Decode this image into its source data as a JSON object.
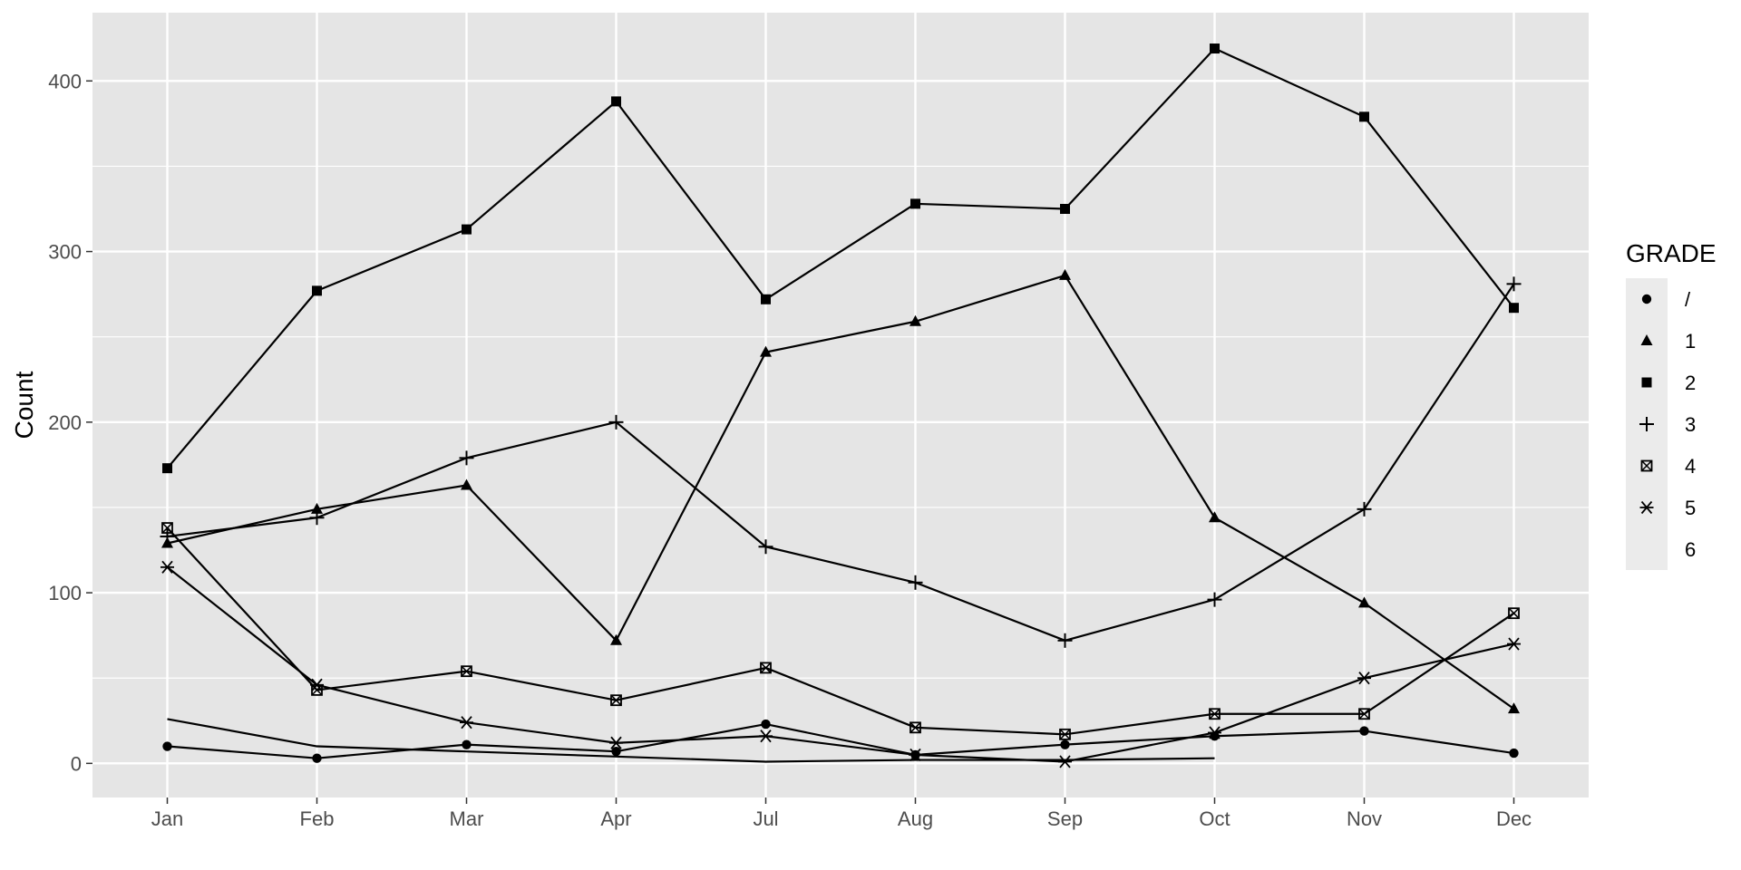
{
  "chart_data": {
    "type": "line",
    "xlabel": "",
    "ylabel": "Count",
    "categories": [
      "Jan",
      "Feb",
      "Mar",
      "Apr",
      "Jul",
      "Aug",
      "Sep",
      "Oct",
      "Nov",
      "Dec"
    ],
    "yticks": [
      0,
      100,
      200,
      300,
      400
    ],
    "ylim": [
      -20,
      440
    ],
    "grid": true,
    "legend": {
      "title": "GRADE",
      "position": "right"
    },
    "series": [
      {
        "name": "/",
        "shape": "circle",
        "values": [
          10,
          3,
          11,
          7,
          23,
          5,
          11,
          16,
          19,
          6
        ]
      },
      {
        "name": "1",
        "shape": "triangle",
        "values": [
          129,
          149,
          163,
          72,
          241,
          259,
          286,
          144,
          94,
          32
        ]
      },
      {
        "name": "2",
        "shape": "square",
        "values": [
          173,
          277,
          313,
          388,
          272,
          328,
          325,
          419,
          379,
          267
        ]
      },
      {
        "name": "3",
        "shape": "plus",
        "values": [
          133,
          144,
          179,
          200,
          127,
          106,
          72,
          96,
          149,
          281
        ]
      },
      {
        "name": "4",
        "shape": "square-cross",
        "values": [
          138,
          43,
          54,
          37,
          56,
          21,
          17,
          29,
          29,
          88
        ]
      },
      {
        "name": "5",
        "shape": "asterisk",
        "values": [
          115,
          46,
          24,
          12,
          16,
          5,
          1,
          18,
          50,
          70
        ]
      },
      {
        "name": "6",
        "shape": "none",
        "values": [
          26,
          10,
          7,
          4,
          1,
          2,
          2,
          3,
          null,
          null
        ]
      }
    ],
    "colors": {
      "background": "#ffffff",
      "panel": "#e5e5e5",
      "grid": "#ffffff",
      "line": "#000000",
      "tick_text": "#4d4d4d",
      "legend_key": "#ebebeb"
    }
  }
}
